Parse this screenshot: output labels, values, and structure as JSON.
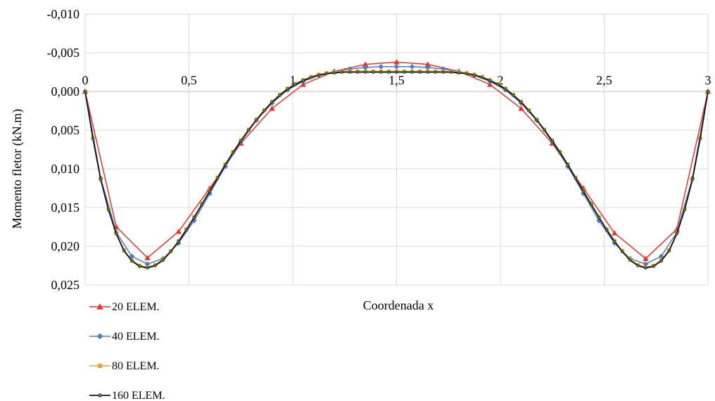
{
  "chart_data": {
    "type": "line",
    "xlabel": "Coordenada x",
    "ylabel": "Momento fletor (kN.m)",
    "xlim": [
      0,
      3
    ],
    "ylim": [
      -0.01,
      0.025
    ],
    "y_reversed": true,
    "x_ticks": [
      0,
      0.5,
      1,
      1.5,
      2,
      2.5,
      3
    ],
    "x_tick_labels": [
      "0",
      "0,5",
      "1",
      "1,5",
      "2",
      "2,5",
      "3"
    ],
    "y_ticks": [
      -0.01,
      -0.005,
      0.0,
      0.005,
      0.01,
      0.015,
      0.02,
      0.025
    ],
    "y_tick_labels": [
      "-0,010",
      "-0,005",
      "0,000",
      "0,005",
      "0,010",
      "0,015",
      "0,020",
      "0,025"
    ],
    "grid": true,
    "legend_position": "bottom-left",
    "series": [
      {
        "name": "20 ELEM.",
        "color": "#e8322d",
        "marker": "triangle",
        "points": [
          [
            0,
            0
          ],
          [
            0.15,
            0.0175
          ],
          [
            0.3,
            0.0215
          ],
          [
            0.45,
            0.0181
          ],
          [
            0.6,
            0.0125
          ],
          [
            0.75,
            0.0067
          ],
          [
            0.9,
            0.0022
          ],
          [
            1.05,
            -0.0009
          ],
          [
            1.2,
            -0.0026
          ],
          [
            1.35,
            -0.0035
          ],
          [
            1.5,
            -0.0038
          ],
          [
            1.65,
            -0.0035
          ],
          [
            1.8,
            -0.0026
          ],
          [
            1.95,
            -0.0009
          ],
          [
            2.1,
            0.0022
          ],
          [
            2.25,
            0.0067
          ],
          [
            2.4,
            0.0125
          ],
          [
            2.55,
            0.0183
          ],
          [
            2.7,
            0.0216
          ],
          [
            2.85,
            0.0178
          ],
          [
            3,
            0
          ]
        ]
      },
      {
        "name": "40 ELEM.",
        "color": "#4a7cc4",
        "marker": "diamond",
        "points": [
          [
            0,
            0
          ],
          [
            0.075,
            0.0112
          ],
          [
            0.15,
            0.0182
          ],
          [
            0.225,
            0.0213
          ],
          [
            0.3,
            0.0223
          ],
          [
            0.375,
            0.0216
          ],
          [
            0.45,
            0.0196
          ],
          [
            0.525,
            0.0167
          ],
          [
            0.6,
            0.0132
          ],
          [
            0.675,
            0.0097
          ],
          [
            0.75,
            0.0065
          ],
          [
            0.825,
            0.0037
          ],
          [
            0.9,
            0.0015
          ],
          [
            0.975,
            -0.0002
          ],
          [
            1.05,
            -0.0013
          ],
          [
            1.125,
            -0.0021
          ],
          [
            1.2,
            -0.0026
          ],
          [
            1.275,
            -0.0029
          ],
          [
            1.35,
            -0.0031
          ],
          [
            1.425,
            -0.0032
          ],
          [
            1.5,
            -0.0032
          ],
          [
            1.575,
            -0.0032
          ],
          [
            1.65,
            -0.0031
          ],
          [
            1.725,
            -0.0029
          ],
          [
            1.8,
            -0.0026
          ],
          [
            1.875,
            -0.0021
          ],
          [
            1.95,
            -0.0013
          ],
          [
            2.025,
            -0.0002
          ],
          [
            2.1,
            0.0015
          ],
          [
            2.175,
            0.0037
          ],
          [
            2.25,
            0.0065
          ],
          [
            2.325,
            0.0097
          ],
          [
            2.4,
            0.0132
          ],
          [
            2.475,
            0.0167
          ],
          [
            2.55,
            0.0196
          ],
          [
            2.625,
            0.0216
          ],
          [
            2.7,
            0.0223
          ],
          [
            2.775,
            0.0213
          ],
          [
            2.85,
            0.0182
          ],
          [
            2.925,
            0.0112
          ],
          [
            3,
            0
          ]
        ]
      },
      {
        "name": "80 ELEM.",
        "color": "#f0a030",
        "marker": "square",
        "points": [
          [
            0,
            0
          ],
          [
            0.0375,
            0.006
          ],
          [
            0.075,
            0.0113
          ],
          [
            0.1125,
            0.0152
          ],
          [
            0.15,
            0.0183
          ],
          [
            0.1875,
            0.0205
          ],
          [
            0.225,
            0.0218
          ],
          [
            0.2625,
            0.0225
          ],
          [
            0.3,
            0.0227
          ],
          [
            0.3375,
            0.0224
          ],
          [
            0.375,
            0.0217
          ],
          [
            0.4125,
            0.0206
          ],
          [
            0.45,
            0.0193
          ],
          [
            0.4875,
            0.0178
          ],
          [
            0.525,
            0.0162
          ],
          [
            0.5625,
            0.0145
          ],
          [
            0.6,
            0.0128
          ],
          [
            0.6375,
            0.0111
          ],
          [
            0.675,
            0.0094
          ],
          [
            0.7125,
            0.0078
          ],
          [
            0.75,
            0.0063
          ],
          [
            0.7875,
            0.0049
          ],
          [
            0.825,
            0.0036
          ],
          [
            0.8625,
            0.0024
          ],
          [
            0.9,
            0.0013
          ],
          [
            0.9375,
            0.0004
          ],
          [
            0.975,
            -0.0004
          ],
          [
            1.0125,
            -0.001
          ],
          [
            1.05,
            -0.0015
          ],
          [
            1.0875,
            -0.0019
          ],
          [
            1.125,
            -0.0022
          ],
          [
            1.1625,
            -0.0024
          ],
          [
            1.2,
            -0.0025
          ],
          [
            1.2375,
            -0.0026
          ],
          [
            1.275,
            -0.0026
          ],
          [
            1.3125,
            -0.0026
          ],
          [
            1.35,
            -0.0026
          ],
          [
            1.3875,
            -0.0026
          ],
          [
            1.425,
            -0.0026
          ],
          [
            1.4625,
            -0.0026
          ],
          [
            1.5,
            -0.0026
          ],
          [
            1.5375,
            -0.0026
          ],
          [
            1.575,
            -0.0026
          ],
          [
            1.6125,
            -0.0026
          ],
          [
            1.65,
            -0.0026
          ],
          [
            1.6875,
            -0.0026
          ],
          [
            1.725,
            -0.0026
          ],
          [
            1.7625,
            -0.0026
          ],
          [
            1.8,
            -0.0025
          ],
          [
            1.8375,
            -0.0024
          ],
          [
            1.875,
            -0.0022
          ],
          [
            1.9125,
            -0.0019
          ],
          [
            1.95,
            -0.0015
          ],
          [
            1.9875,
            -0.001
          ],
          [
            2.025,
            -0.0004
          ],
          [
            2.0625,
            0.0004
          ],
          [
            2.1,
            0.0013
          ],
          [
            2.1375,
            0.0024
          ],
          [
            2.175,
            0.0036
          ],
          [
            2.2125,
            0.0049
          ],
          [
            2.25,
            0.0063
          ],
          [
            2.2875,
            0.0078
          ],
          [
            2.325,
            0.0094
          ],
          [
            2.3625,
            0.0111
          ],
          [
            2.4,
            0.0128
          ],
          [
            2.4375,
            0.0145
          ],
          [
            2.475,
            0.0162
          ],
          [
            2.5125,
            0.0178
          ],
          [
            2.55,
            0.0193
          ],
          [
            2.5875,
            0.0206
          ],
          [
            2.625,
            0.0217
          ],
          [
            2.6625,
            0.0224
          ],
          [
            2.7,
            0.0227
          ],
          [
            2.7375,
            0.0225
          ],
          [
            2.775,
            0.0218
          ],
          [
            2.8125,
            0.0205
          ],
          [
            2.85,
            0.0183
          ],
          [
            2.8875,
            0.0152
          ],
          [
            2.925,
            0.0113
          ],
          [
            2.9625,
            0.006
          ],
          [
            3,
            0
          ]
        ]
      },
      {
        "name": "160 ELEM.",
        "color": "#111111",
        "marker": "circle",
        "marker_fill": "#4a8a3a",
        "points": [
          [
            0,
            0
          ],
          [
            0.0375,
            0.0061
          ],
          [
            0.075,
            0.0114
          ],
          [
            0.1125,
            0.0153
          ],
          [
            0.15,
            0.0184
          ],
          [
            0.1875,
            0.0206
          ],
          [
            0.225,
            0.0219
          ],
          [
            0.2625,
            0.0226
          ],
          [
            0.3,
            0.0228
          ],
          [
            0.3375,
            0.0225
          ],
          [
            0.375,
            0.0218
          ],
          [
            0.4125,
            0.0207
          ],
          [
            0.45,
            0.0194
          ],
          [
            0.4875,
            0.0179
          ],
          [
            0.525,
            0.0163
          ],
          [
            0.5625,
            0.0146
          ],
          [
            0.6,
            0.0129
          ],
          [
            0.6375,
            0.0112
          ],
          [
            0.675,
            0.0095
          ],
          [
            0.7125,
            0.0079
          ],
          [
            0.75,
            0.0064
          ],
          [
            0.7875,
            0.005
          ],
          [
            0.825,
            0.0037
          ],
          [
            0.8625,
            0.0025
          ],
          [
            0.9,
            0.0014
          ],
          [
            0.9375,
            0.0005
          ],
          [
            0.975,
            -0.0003
          ],
          [
            1.0125,
            -0.0009
          ],
          [
            1.05,
            -0.0014
          ],
          [
            1.0875,
            -0.0018
          ],
          [
            1.125,
            -0.0021
          ],
          [
            1.1625,
            -0.0023
          ],
          [
            1.2,
            -0.0024
          ],
          [
            1.2375,
            -0.0025
          ],
          [
            1.275,
            -0.0025
          ],
          [
            1.3125,
            -0.0025
          ],
          [
            1.35,
            -0.0025
          ],
          [
            1.3875,
            -0.0025
          ],
          [
            1.425,
            -0.0025
          ],
          [
            1.4625,
            -0.0025
          ],
          [
            1.5,
            -0.0025
          ],
          [
            1.5375,
            -0.0025
          ],
          [
            1.575,
            -0.0025
          ],
          [
            1.6125,
            -0.0025
          ],
          [
            1.65,
            -0.0025
          ],
          [
            1.6875,
            -0.0025
          ],
          [
            1.725,
            -0.0025
          ],
          [
            1.7625,
            -0.0025
          ],
          [
            1.8,
            -0.0024
          ],
          [
            1.8375,
            -0.0023
          ],
          [
            1.875,
            -0.0021
          ],
          [
            1.9125,
            -0.0018
          ],
          [
            1.95,
            -0.0014
          ],
          [
            1.9875,
            -0.0009
          ],
          [
            2.025,
            -0.0003
          ],
          [
            2.0625,
            0.0005
          ],
          [
            2.1,
            0.0014
          ],
          [
            2.1375,
            0.0025
          ],
          [
            2.175,
            0.0037
          ],
          [
            2.2125,
            0.005
          ],
          [
            2.25,
            0.0064
          ],
          [
            2.2875,
            0.0079
          ],
          [
            2.325,
            0.0095
          ],
          [
            2.3625,
            0.0112
          ],
          [
            2.4,
            0.0129
          ],
          [
            2.4375,
            0.0146
          ],
          [
            2.475,
            0.0163
          ],
          [
            2.5125,
            0.0179
          ],
          [
            2.55,
            0.0194
          ],
          [
            2.5875,
            0.0207
          ],
          [
            2.625,
            0.0218
          ],
          [
            2.6625,
            0.0225
          ],
          [
            2.7,
            0.0228
          ],
          [
            2.7375,
            0.0226
          ],
          [
            2.775,
            0.0219
          ],
          [
            2.8125,
            0.0206
          ],
          [
            2.85,
            0.0184
          ],
          [
            2.8875,
            0.0153
          ],
          [
            2.925,
            0.0114
          ],
          [
            2.9625,
            0.0061
          ],
          [
            3,
            0
          ]
        ]
      }
    ]
  }
}
